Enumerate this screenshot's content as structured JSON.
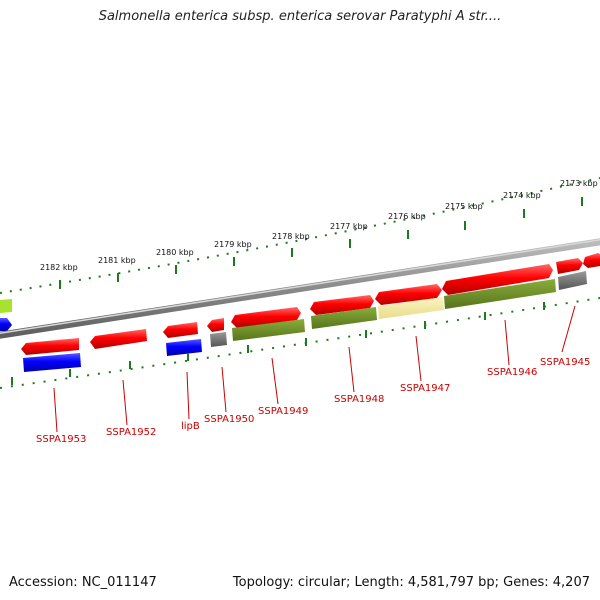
{
  "title": "Salmonella enterica subsp. enterica serovar Paratyphi A str....",
  "accession": "Accession: NC_011147",
  "stats": "Topology: circular; Length: 4,581,797 bp; Genes: 4,207",
  "colors": {
    "forward_gene": "#ff0000",
    "reverse_gene": "#0000ff",
    "backbone": "#8a8a8a",
    "tick": "#1e7a1e",
    "label": "#cc0000",
    "feature_olive": "#6b8e23",
    "feature_gray": "#6e6e6e",
    "feature_pale": "#f2e8a0",
    "feature_lime": "#a6e22e"
  },
  "scale_labels": [
    "2173 kbp",
    "2174 kbp",
    "2175 kbp",
    "2176 kbp",
    "2177 kbp",
    "2178 kbp",
    "2179 kbp",
    "2180 kbp",
    "2181 kbp",
    "2182 kbp"
  ],
  "gene_labels": [
    "SSPA1945",
    "SSPA1946",
    "SSPA1947",
    "SSPA1948",
    "SSPA1949",
    "SSPA1950",
    "lipB",
    "SSPA1952",
    "SSPA1953"
  ]
}
